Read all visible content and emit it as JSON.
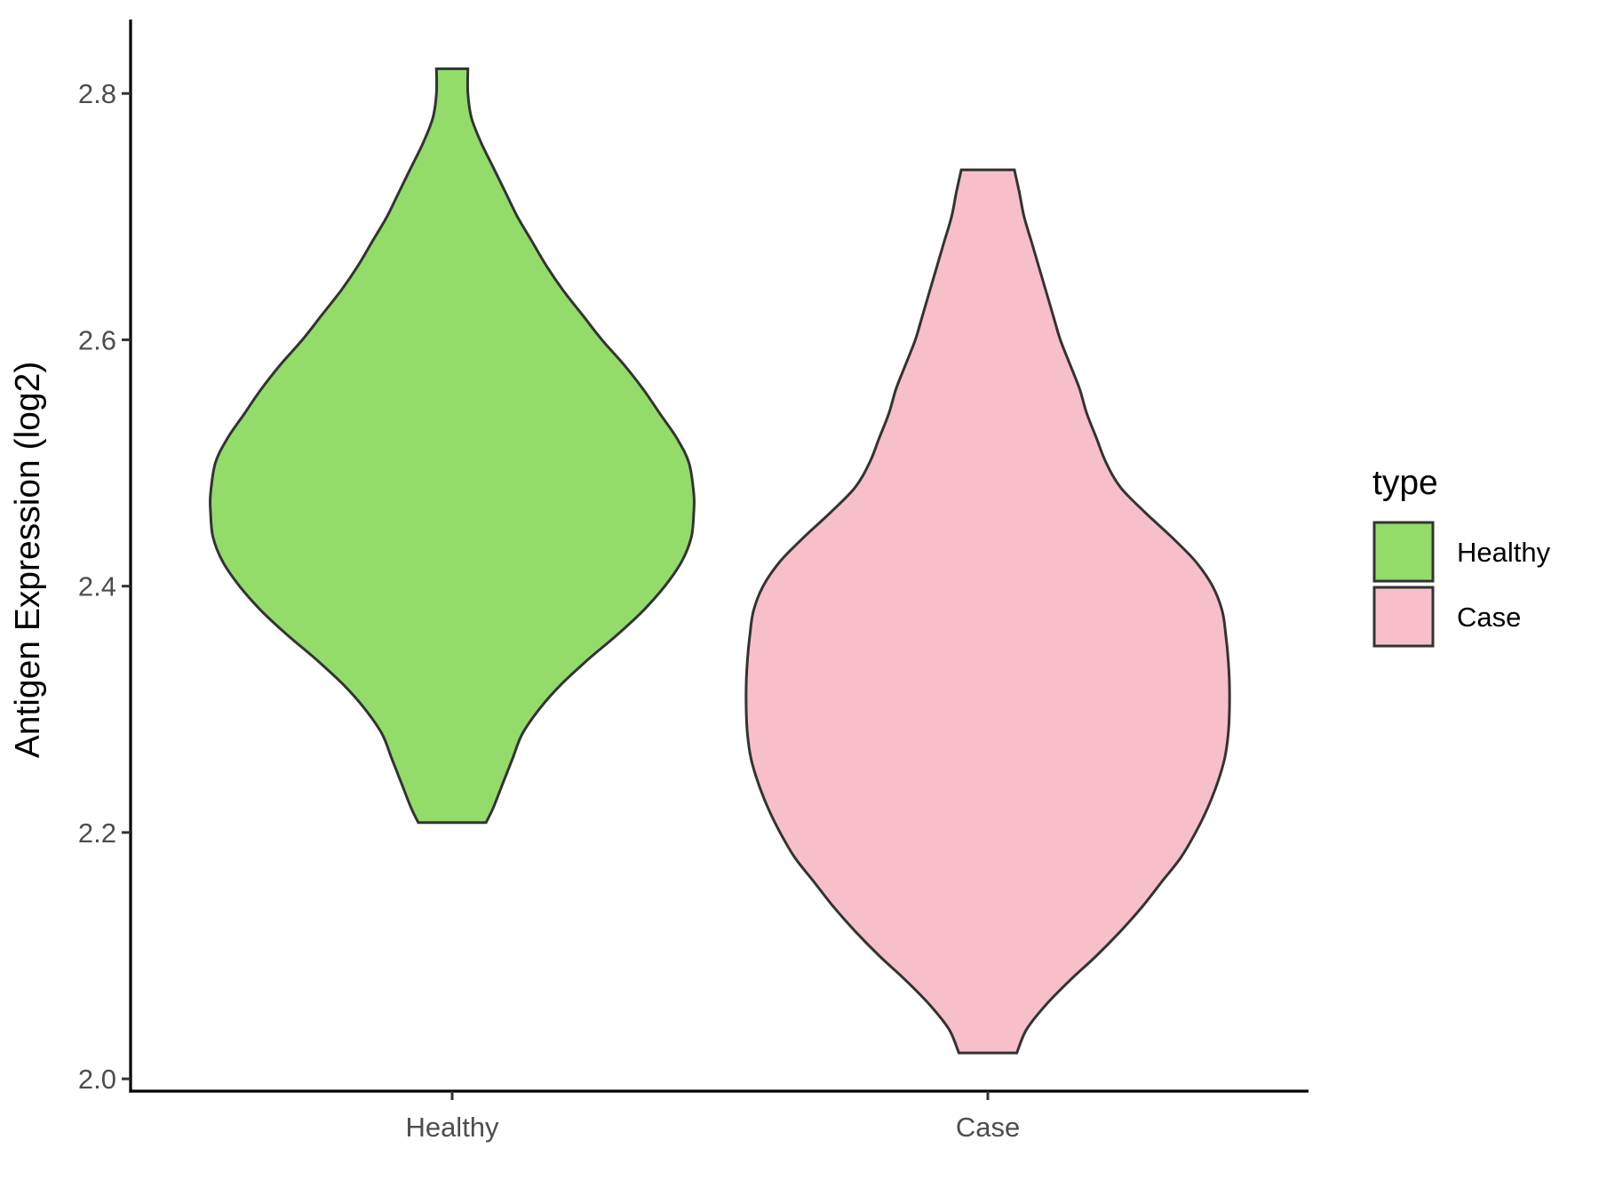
{
  "chart_data": {
    "type": "violin",
    "title": "",
    "xlabel": "",
    "ylabel": "Antigen Expression (log2)",
    "ylim": [
      1.99,
      2.86
    ],
    "yticks": [
      2.0,
      2.2,
      2.4,
      2.6,
      2.8
    ],
    "ytick_labels": [
      "2.0",
      "2.2",
      "2.4",
      "2.6",
      "2.8"
    ],
    "categories": [
      "Healthy",
      "Case"
    ],
    "grid": false,
    "legend": {
      "title": "type",
      "placement": "right",
      "entries": [
        {
          "label": "Healthy",
          "color": "#93dc6a"
        },
        {
          "label": "Case",
          "color": "#f7bfca"
        }
      ]
    },
    "series": [
      {
        "category": "Healthy",
        "color": "#93dc6a",
        "min": 2.208,
        "max": 2.82,
        "relative_density": [
          [
            2.208,
            0.14
          ],
          [
            2.22,
            0.17
          ],
          [
            2.24,
            0.21
          ],
          [
            2.26,
            0.25
          ],
          [
            2.28,
            0.29
          ],
          [
            2.3,
            0.36
          ],
          [
            2.32,
            0.45
          ],
          [
            2.34,
            0.56
          ],
          [
            2.36,
            0.68
          ],
          [
            2.38,
            0.79
          ],
          [
            2.4,
            0.88
          ],
          [
            2.42,
            0.95
          ],
          [
            2.44,
            0.99
          ],
          [
            2.46,
            1.0
          ],
          [
            2.475,
            1.0
          ],
          [
            2.5,
            0.98
          ],
          [
            2.52,
            0.93
          ],
          [
            2.54,
            0.86
          ],
          [
            2.56,
            0.79
          ],
          [
            2.58,
            0.71
          ],
          [
            2.6,
            0.62
          ],
          [
            2.62,
            0.54
          ],
          [
            2.64,
            0.46
          ],
          [
            2.66,
            0.39
          ],
          [
            2.68,
            0.33
          ],
          [
            2.7,
            0.27
          ],
          [
            2.72,
            0.22
          ],
          [
            2.74,
            0.17
          ],
          [
            2.76,
            0.12
          ],
          [
            2.78,
            0.08
          ],
          [
            2.8,
            0.065
          ],
          [
            2.82,
            0.065
          ]
        ]
      },
      {
        "category": "Case",
        "color": "#f7bfca",
        "min": 2.021,
        "max": 2.738,
        "relative_density": [
          [
            2.021,
            0.12
          ],
          [
            2.04,
            0.16
          ],
          [
            2.06,
            0.24
          ],
          [
            2.08,
            0.34
          ],
          [
            2.1,
            0.45
          ],
          [
            2.12,
            0.55
          ],
          [
            2.14,
            0.64
          ],
          [
            2.16,
            0.72
          ],
          [
            2.18,
            0.8
          ],
          [
            2.2,
            0.86
          ],
          [
            2.22,
            0.91
          ],
          [
            2.24,
            0.95
          ],
          [
            2.26,
            0.98
          ],
          [
            2.28,
            0.995
          ],
          [
            2.3,
            1.0
          ],
          [
            2.32,
            1.0
          ],
          [
            2.34,
            0.995
          ],
          [
            2.36,
            0.985
          ],
          [
            2.38,
            0.97
          ],
          [
            2.4,
            0.93
          ],
          [
            2.42,
            0.86
          ],
          [
            2.44,
            0.76
          ],
          [
            2.46,
            0.65
          ],
          [
            2.48,
            0.55
          ],
          [
            2.5,
            0.49
          ],
          [
            2.52,
            0.45
          ],
          [
            2.54,
            0.41
          ],
          [
            2.56,
            0.38
          ],
          [
            2.58,
            0.34
          ],
          [
            2.6,
            0.3
          ],
          [
            2.62,
            0.27
          ],
          [
            2.64,
            0.24
          ],
          [
            2.66,
            0.21
          ],
          [
            2.68,
            0.18
          ],
          [
            2.7,
            0.15
          ],
          [
            2.72,
            0.13
          ],
          [
            2.738,
            0.11
          ]
        ]
      }
    ]
  }
}
